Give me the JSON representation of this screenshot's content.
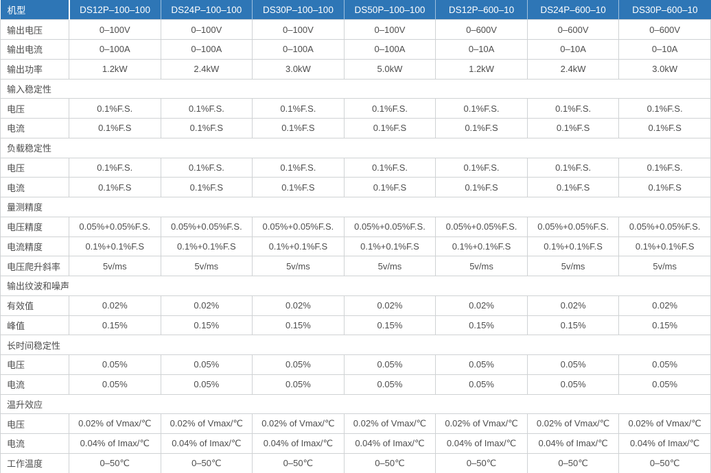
{
  "colors": {
    "header_bg": "#2e76b6",
    "header_text": "#ffffff",
    "body_text": "#4d4d4d",
    "border": "#cfd2d4",
    "background": "#ffffff"
  },
  "table": {
    "corner_label": "机型",
    "models": [
      "DS12P–100–100",
      "DS24P–100–100",
      "DS30P–100–100",
      "DS50P–100–100",
      "DS12P–600–10",
      "DS24P–600–10",
      "DS30P–600–10"
    ],
    "rows": [
      {
        "type": "data",
        "label": "输出电压",
        "values": [
          "0–100V",
          "0–100V",
          "0–100V",
          "0–100V",
          "0–600V",
          "0–600V",
          "0–600V"
        ]
      },
      {
        "type": "data",
        "label": "输出电流",
        "values": [
          "0–100A",
          "0–100A",
          "0–100A",
          "0–100A",
          "0–10A",
          "0–10A",
          "0–10A"
        ]
      },
      {
        "type": "data",
        "label": "输出功率",
        "values": [
          "1.2kW",
          "2.4kW",
          "3.0kW",
          "5.0kW",
          "1.2kW",
          "2.4kW",
          "3.0kW"
        ]
      },
      {
        "type": "section",
        "label": "输入稳定性"
      },
      {
        "type": "data",
        "label": "电压",
        "values": [
          "0.1%F.S.",
          "0.1%F.S.",
          "0.1%F.S.",
          "0.1%F.S.",
          "0.1%F.S.",
          "0.1%F.S.",
          "0.1%F.S."
        ]
      },
      {
        "type": "data",
        "label": "电流",
        "values": [
          "0.1%F.S",
          "0.1%F.S",
          "0.1%F.S",
          "0.1%F.S",
          "0.1%F.S",
          "0.1%F.S",
          "0.1%F.S"
        ]
      },
      {
        "type": "section",
        "label": "负载稳定性"
      },
      {
        "type": "data",
        "label": "电压",
        "values": [
          "0.1%F.S.",
          "0.1%F.S.",
          "0.1%F.S.",
          "0.1%F.S.",
          "0.1%F.S.",
          "0.1%F.S.",
          "0.1%F.S."
        ]
      },
      {
        "type": "data",
        "label": "电流",
        "values": [
          "0.1%F.S",
          "0.1%F.S",
          "0.1%F.S",
          "0.1%F.S",
          "0.1%F.S",
          "0.1%F.S",
          "0.1%F.S"
        ]
      },
      {
        "type": "section",
        "label": "量测精度"
      },
      {
        "type": "data",
        "label": "电压精度",
        "values": [
          "0.05%+0.05%F.S.",
          "0.05%+0.05%F.S.",
          "0.05%+0.05%F.S.",
          "0.05%+0.05%F.S.",
          "0.05%+0.05%F.S.",
          "0.05%+0.05%F.S.",
          "0.05%+0.05%F.S."
        ]
      },
      {
        "type": "data",
        "label": "电流精度",
        "values": [
          "0.1%+0.1%F.S",
          "0.1%+0.1%F.S",
          "0.1%+0.1%F.S",
          "0.1%+0.1%F.S",
          "0.1%+0.1%F.S",
          "0.1%+0.1%F.S",
          "0.1%+0.1%F.S"
        ]
      },
      {
        "type": "data",
        "label": "电压爬升斜率",
        "values": [
          "5v/ms",
          "5v/ms",
          "5v/ms",
          "5v/ms",
          "5v/ms",
          "5v/ms",
          "5v/ms"
        ]
      },
      {
        "type": "section",
        "label": "输出纹波和噪声"
      },
      {
        "type": "data",
        "label": "有效值",
        "values": [
          "0.02%",
          "0.02%",
          "0.02%",
          "0.02%",
          "0.02%",
          "0.02%",
          "0.02%"
        ]
      },
      {
        "type": "data",
        "label": "峰值",
        "values": [
          "0.15%",
          "0.15%",
          "0.15%",
          "0.15%",
          "0.15%",
          "0.15%",
          "0.15%"
        ]
      },
      {
        "type": "section",
        "label": "长时间稳定性"
      },
      {
        "type": "data",
        "label": "电压",
        "values": [
          "0.05%",
          "0.05%",
          "0.05%",
          "0.05%",
          "0.05%",
          "0.05%",
          "0.05%"
        ]
      },
      {
        "type": "data",
        "label": "电流",
        "values": [
          "0.05%",
          "0.05%",
          "0.05%",
          "0.05%",
          "0.05%",
          "0.05%",
          "0.05%"
        ]
      },
      {
        "type": "section",
        "label": "温升效应"
      },
      {
        "type": "data",
        "label": "电压",
        "values": [
          "0.02% of Vmax/℃",
          "0.02% of Vmax/℃",
          "0.02% of Vmax/℃",
          "0.02% of Vmax/℃",
          "0.02% of Vmax/℃",
          "0.02% of Vmax/℃",
          "0.02% of Vmax/℃"
        ]
      },
      {
        "type": "data",
        "label": "电流",
        "values": [
          "0.04% of Imax/℃",
          "0.04% of Imax/℃",
          "0.04% of Imax/℃",
          "0.04% of Imax/℃",
          "0.04% of Imax/℃",
          "0.04% of Imax/℃",
          "0.04% of Imax/℃"
        ]
      },
      {
        "type": "data",
        "label": "工作温度",
        "values": [
          "0–50℃",
          "0–50℃",
          "0–50℃",
          "0–50℃",
          "0–50℃",
          "0–50℃",
          "0–50℃"
        ]
      }
    ]
  }
}
